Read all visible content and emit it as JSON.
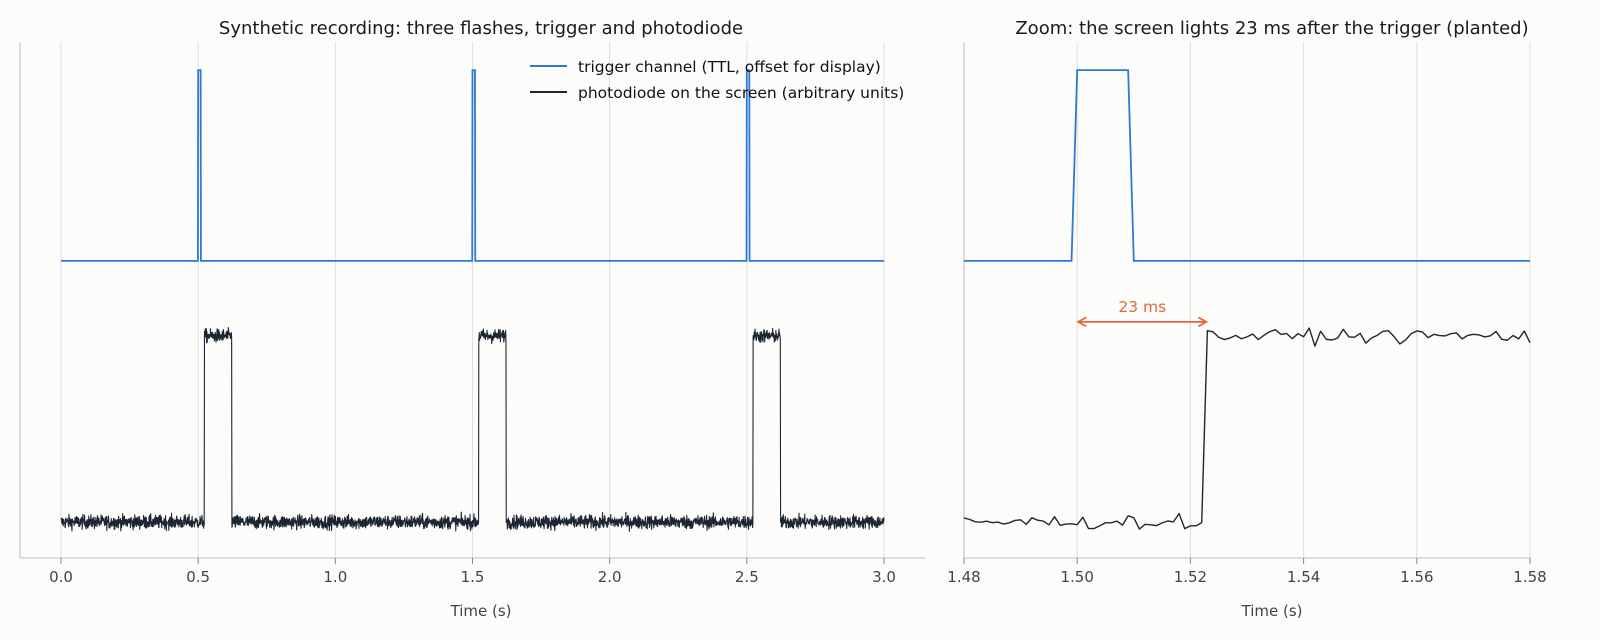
{
  "colors": {
    "trigger": "#2f78d4",
    "photodiode": "#1d2733",
    "annotation": "#e8673a",
    "grid": "#dedede",
    "axis": "#bbbbbb",
    "background": "#fcfcfa"
  },
  "chart_data": [
    {
      "type": "line",
      "title": "Synthetic recording: three flashes, trigger and photodiode",
      "xlabel": "Time (s)",
      "ylabel": "",
      "xlim": [
        -0.15,
        3.15
      ],
      "ylim": [
        -0.2,
        3.1
      ],
      "xticks": [
        0.0,
        0.5,
        1.0,
        1.5,
        2.0,
        2.5,
        3.0
      ],
      "xtick_labels": [
        "0.0",
        "0.5",
        "1.0",
        "1.5",
        "2.0",
        "2.5",
        "3.0"
      ],
      "grid": "vertical",
      "legend": {
        "position": "top-right"
      },
      "series": [
        {
          "name": "trigger channel (TTL, offset for display)",
          "role": "trigger",
          "baseline": 1.7,
          "pulse_level": 2.92,
          "pulse_starts": [
            0.5,
            1.5,
            2.5
          ],
          "pulse_width": 0.01
        },
        {
          "name": "photodiode on the screen (arbitrary units)",
          "role": "photodiode",
          "baseline": 0.03,
          "flash_level": 1.22,
          "flash_starts": [
            0.523,
            1.523,
            2.523
          ],
          "flash_duration": 0.1,
          "noise": 0.022
        }
      ]
    },
    {
      "type": "line",
      "title": "Zoom: the screen lights 23 ms after the trigger (planted)",
      "xlabel": "Time (s)",
      "ylabel": "",
      "xlim": [
        1.48,
        1.58
      ],
      "ylim": [
        -0.2,
        3.1
      ],
      "xticks": [
        1.48,
        1.5,
        1.52,
        1.54,
        1.56,
        1.58
      ],
      "xtick_labels": [
        "1.48",
        "1.50",
        "1.52",
        "1.54",
        "1.56",
        "1.58"
      ],
      "grid": "vertical",
      "annotation": {
        "text": "23 ms",
        "x_start": 1.5,
        "x_end": 1.523,
        "y": 1.31
      }
    }
  ]
}
